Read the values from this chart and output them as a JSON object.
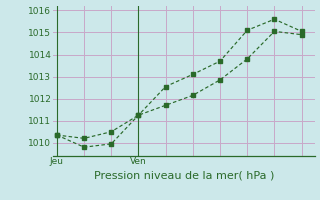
{
  "title": "Pression niveau de la mer( hPa )",
  "bg_color": "#cce8ea",
  "grid_color": "#c8a8c8",
  "line_color": "#2a6a2a",
  "bottom_line_color": "#2a6a2a",
  "ylim": [
    1009.4,
    1016.2
  ],
  "yticks": [
    1010,
    1011,
    1012,
    1013,
    1014,
    1015,
    1016
  ],
  "series1_x": [
    0,
    1,
    2,
    3,
    4,
    5,
    6,
    7,
    8,
    9
  ],
  "series1_y": [
    1010.35,
    1009.8,
    1009.95,
    1011.25,
    1012.55,
    1013.1,
    1013.7,
    1015.1,
    1015.6,
    1015.05
  ],
  "series2_x": [
    0,
    1,
    2,
    3,
    4,
    5,
    6,
    7,
    8,
    9
  ],
  "series2_y": [
    1010.35,
    1010.2,
    1010.5,
    1011.25,
    1011.7,
    1012.15,
    1012.85,
    1013.8,
    1015.05,
    1014.9
  ],
  "vline_x_jeu": 0,
  "vline_x_ven": 3,
  "n_points": 10,
  "xlim": [
    -0.15,
    9.5
  ],
  "tick_fontsize": 6.5,
  "xlabel_fontsize": 8
}
